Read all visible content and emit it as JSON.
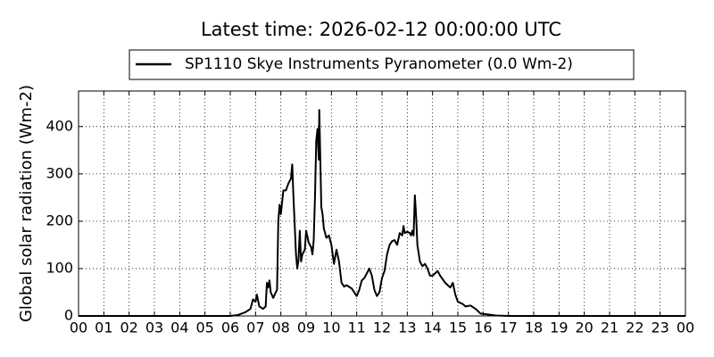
{
  "chart_data": {
    "type": "line",
    "title": "Latest time: 2026-02-12 00:00:00 UTC",
    "y_label": "Global solar radiation (Wm-2)",
    "x": [
      0,
      1,
      2,
      3,
      4,
      5,
      6,
      6.3,
      6.6,
      6.8,
      6.9,
      7.0,
      7.05,
      7.15,
      7.3,
      7.4,
      7.45,
      7.5,
      7.55,
      7.6,
      7.7,
      7.8,
      7.85,
      7.9,
      7.95,
      8.0,
      8.05,
      8.1,
      8.2,
      8.3,
      8.4,
      8.45,
      8.5,
      8.6,
      8.65,
      8.7,
      8.75,
      8.8,
      8.85,
      8.95,
      9.0,
      9.1,
      9.2,
      9.25,
      9.3,
      9.35,
      9.4,
      9.45,
      9.5,
      9.52,
      9.55,
      9.6,
      9.65,
      9.7,
      9.8,
      9.9,
      10.0,
      10.1,
      10.2,
      10.3,
      10.4,
      10.5,
      10.6,
      10.8,
      10.9,
      11.0,
      11.1,
      11.2,
      11.3,
      11.4,
      11.5,
      11.6,
      11.7,
      11.8,
      11.9,
      12.0,
      12.1,
      12.2,
      12.3,
      12.4,
      12.5,
      12.6,
      12.7,
      12.8,
      12.85,
      12.9,
      13.0,
      13.1,
      13.15,
      13.2,
      13.25,
      13.3,
      13.35,
      13.4,
      13.5,
      13.6,
      13.7,
      13.8,
      13.9,
      14.0,
      14.1,
      14.2,
      14.3,
      14.5,
      14.6,
      14.7,
      14.8,
      14.9,
      15.0,
      15.2,
      15.3,
      15.5,
      15.7,
      15.9,
      16.2,
      16.5,
      17,
      24
    ],
    "series": [
      {
        "name": "SP1110 Skye Instruments Pyranometer (0.0 Wm-2)",
        "color": "#000000",
        "values": [
          0,
          0,
          0,
          0,
          0,
          0,
          0,
          2,
          8,
          15,
          35,
          30,
          45,
          20,
          15,
          20,
          70,
          60,
          75,
          50,
          38,
          50,
          55,
          200,
          235,
          215,
          240,
          265,
          265,
          280,
          290,
          320,
          250,
          130,
          100,
          120,
          180,
          115,
          130,
          140,
          180,
          155,
          145,
          130,
          160,
          250,
          370,
          395,
          330,
          435,
          360,
          230,
          215,
          185,
          165,
          170,
          150,
          110,
          140,
          115,
          70,
          62,
          65,
          58,
          50,
          42,
          55,
          75,
          80,
          90,
          100,
          85,
          55,
          42,
          50,
          80,
          95,
          130,
          150,
          158,
          160,
          150,
          175,
          170,
          190,
          175,
          178,
          175,
          170,
          180,
          170,
          255,
          210,
          150,
          115,
          105,
          110,
          100,
          85,
          85,
          90,
          95,
          85,
          70,
          65,
          60,
          70,
          45,
          30,
          25,
          20,
          22,
          15,
          5,
          3,
          1,
          0,
          0
        ]
      }
    ],
    "xlim": [
      0,
      24
    ],
    "ylim": [
      0,
      475
    ],
    "xticks": [
      {
        "value": 0,
        "label": "00"
      },
      {
        "value": 1,
        "label": "01"
      },
      {
        "value": 2,
        "label": "02"
      },
      {
        "value": 3,
        "label": "03"
      },
      {
        "value": 4,
        "label": "04"
      },
      {
        "value": 5,
        "label": "05"
      },
      {
        "value": 6,
        "label": "06"
      },
      {
        "value": 7,
        "label": "07"
      },
      {
        "value": 8,
        "label": "08"
      },
      {
        "value": 9,
        "label": "09"
      },
      10,
      11,
      12,
      13,
      14,
      15,
      16,
      17,
      18,
      19,
      20,
      21,
      22,
      23,
      {
        "value": 24,
        "label": "00"
      }
    ],
    "yticks": [
      0,
      100,
      200,
      300,
      400
    ],
    "grid": true
  }
}
